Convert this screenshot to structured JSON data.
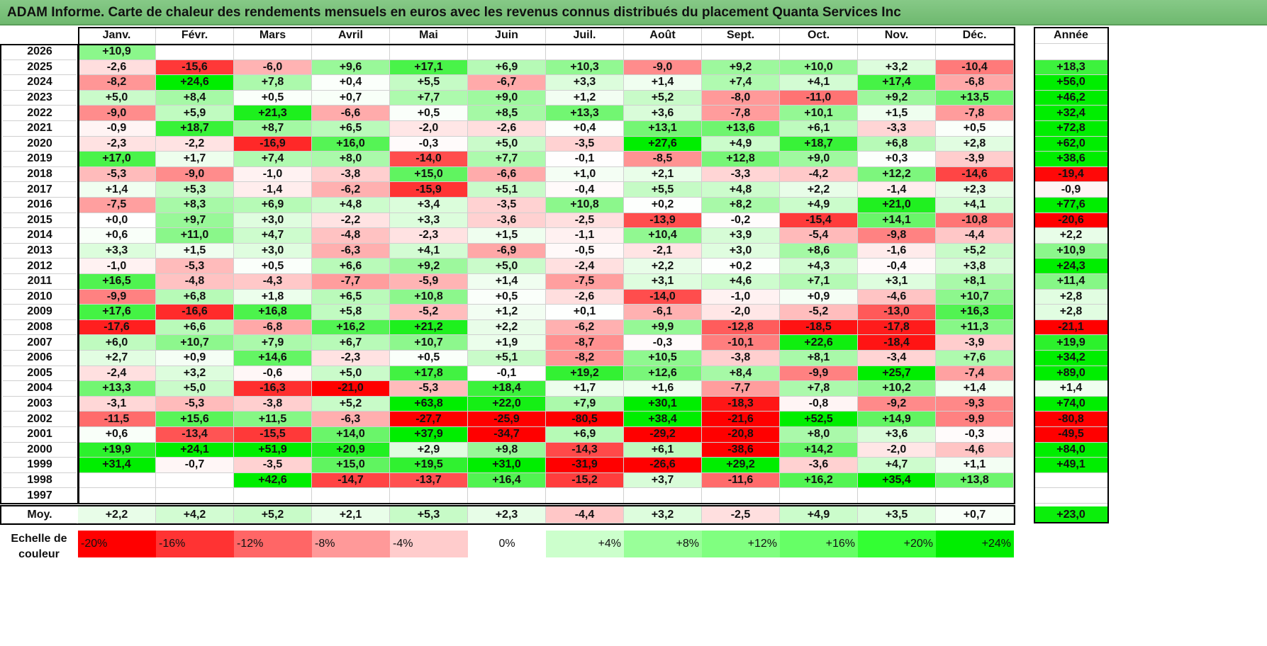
{
  "title": "ADAM Informe. Carte de chaleur des rendements mensuels en euros avec les revenus connus distribués du placement Quanta Services Inc",
  "chart_data": {
    "type": "heatmap",
    "months": [
      "Janv.",
      "Févr.",
      "Mars",
      "Avril",
      "Mai",
      "Juin",
      "Juil.",
      "Août",
      "Sept.",
      "Oct.",
      "Nov.",
      "Déc."
    ],
    "year_header": "Année",
    "rows": [
      {
        "year": "2026",
        "values": [
          "+10,9",
          null,
          null,
          null,
          null,
          null,
          null,
          null,
          null,
          null,
          null,
          null
        ],
        "annual": null
      },
      {
        "year": "2025",
        "values": [
          "-2,6",
          "-15,6",
          "-6,0",
          "+9,6",
          "+17,1",
          "+6,9",
          "+10,3",
          "-9,0",
          "+9,2",
          "+10,0",
          "+3,2",
          "-10,4"
        ],
        "annual": "+18,3"
      },
      {
        "year": "2024",
        "values": [
          "-8,2",
          "+24,6",
          "+7,8",
          "+0,4",
          "+5,5",
          "-6,7",
          "+3,3",
          "+1,4",
          "+7,4",
          "+4,1",
          "+17,4",
          "-6,8"
        ],
        "annual": "+56,0"
      },
      {
        "year": "2023",
        "values": [
          "+5,0",
          "+8,4",
          "+0,5",
          "+0,7",
          "+7,7",
          "+9,0",
          "+1,2",
          "+5,2",
          "-8,0",
          "-11,0",
          "+9,2",
          "+13,5"
        ],
        "annual": "+46,2"
      },
      {
        "year": "2022",
        "values": [
          "-9,0",
          "+5,9",
          "+21,3",
          "-6,6",
          "+0,5",
          "+8,5",
          "+13,3",
          "+3,6",
          "-7,8",
          "+10,1",
          "+1,5",
          "-7,8"
        ],
        "annual": "+32,4"
      },
      {
        "year": "2021",
        "values": [
          "-0,9",
          "+18,7",
          "+8,7",
          "+6,5",
          "-2,0",
          "-2,6",
          "+0,4",
          "+13,1",
          "+13,6",
          "+6,1",
          "-3,3",
          "+0,5"
        ],
        "annual": "+72,8"
      },
      {
        "year": "2020",
        "values": [
          "-2,3",
          "-2,2",
          "-16,9",
          "+16,0",
          "-0,3",
          "+5,0",
          "-3,5",
          "+27,6",
          "+4,9",
          "+18,7",
          "+6,8",
          "+2,8"
        ],
        "annual": "+62,0"
      },
      {
        "year": "2019",
        "values": [
          "+17,0",
          "+1,7",
          "+7,4",
          "+8,0",
          "-14,0",
          "+7,7",
          "-0,1",
          "-8,5",
          "+12,8",
          "+9,0",
          "+0,3",
          "-3,9"
        ],
        "annual": "+38,6"
      },
      {
        "year": "2018",
        "values": [
          "-5,3",
          "-9,0",
          "-1,0",
          "-3,8",
          "+15,0",
          "-6,6",
          "+1,0",
          "+2,1",
          "-3,3",
          "-4,2",
          "+12,2",
          "-14,6"
        ],
        "annual": "-19,4"
      },
      {
        "year": "2017",
        "values": [
          "+1,4",
          "+5,3",
          "-1,4",
          "-6,2",
          "-15,9",
          "+5,1",
          "-0,4",
          "+5,5",
          "+4,8",
          "+2,2",
          "-1,4",
          "+2,3"
        ],
        "annual": "-0,9"
      },
      {
        "year": "2016",
        "values": [
          "-7,5",
          "+8,3",
          "+6,9",
          "+4,8",
          "+3,4",
          "-3,5",
          "+10,8",
          "+0,2",
          "+8,2",
          "+4,9",
          "+21,0",
          "+4,1"
        ],
        "annual": "+77,6"
      },
      {
        "year": "2015",
        "values": [
          "+0,0",
          "+9,7",
          "+3,0",
          "-2,2",
          "+3,3",
          "-3,6",
          "-2,5",
          "-13,9",
          "-0,2",
          "-15,4",
          "+14,1",
          "-10,8"
        ],
        "annual": "-20,6"
      },
      {
        "year": "2014",
        "values": [
          "+0,6",
          "+11,0",
          "+4,7",
          "-4,8",
          "-2,3",
          "+1,5",
          "-1,1",
          "+10,4",
          "+3,9",
          "-5,4",
          "-9,8",
          "-4,4"
        ],
        "annual": "+2,2"
      },
      {
        "year": "2013",
        "values": [
          "+3,3",
          "+1,5",
          "+3,0",
          "-6,3",
          "+4,1",
          "-6,9",
          "-0,5",
          "-2,1",
          "+3,0",
          "+8,6",
          "-1,6",
          "+5,2"
        ],
        "annual": "+10,9"
      },
      {
        "year": "2012",
        "values": [
          "-1,0",
          "-5,3",
          "+0,5",
          "+6,6",
          "+9,2",
          "+5,0",
          "-2,4",
          "+2,2",
          "+0,2",
          "+4,3",
          "-0,4",
          "+3,8"
        ],
        "annual": "+24,3"
      },
      {
        "year": "2011",
        "values": [
          "+16,5",
          "-4,8",
          "-4,3",
          "-7,7",
          "-5,9",
          "+1,4",
          "-7,5",
          "+3,1",
          "+4,6",
          "+7,1",
          "+3,1",
          "+8,1"
        ],
        "annual": "+11,4"
      },
      {
        "year": "2010",
        "values": [
          "-9,9",
          "+6,8",
          "+1,8",
          "+6,5",
          "+10,8",
          "+0,5",
          "-2,6",
          "-14,0",
          "-1,0",
          "+0,9",
          "-4,6",
          "+10,7"
        ],
        "annual": "+2,8"
      },
      {
        "year": "2009",
        "values": [
          "+17,6",
          "-16,6",
          "+16,8",
          "+5,8",
          "-5,2",
          "+1,2",
          "+0,1",
          "-6,1",
          "-2,0",
          "-5,2",
          "-13,0",
          "+16,3"
        ],
        "annual": "+2,8"
      },
      {
        "year": "2008",
        "values": [
          "-17,6",
          "+6,6",
          "-6,8",
          "+16,2",
          "+21,2",
          "+2,2",
          "-6,2",
          "+9,9",
          "-12,8",
          "-18,5",
          "-17,8",
          "+11,3"
        ],
        "annual": "-21,1"
      },
      {
        "year": "2007",
        "values": [
          "+6,0",
          "+10,7",
          "+7,9",
          "+6,7",
          "+10,7",
          "+1,9",
          "-8,7",
          "-0,3",
          "-10,1",
          "+22,6",
          "-18,4",
          "-3,9"
        ],
        "annual": "+19,9"
      },
      {
        "year": "2006",
        "values": [
          "+2,7",
          "+0,9",
          "+14,6",
          "-2,3",
          "+0,5",
          "+5,1",
          "-8,2",
          "+10,5",
          "-3,8",
          "+8,1",
          "-3,4",
          "+7,6"
        ],
        "annual": "+34,2"
      },
      {
        "year": "2005",
        "values": [
          "-2,4",
          "+3,2",
          "-0,6",
          "+5,0",
          "+17,8",
          "-0,1",
          "+19,2",
          "+12,6",
          "+8,4",
          "-9,9",
          "+25,7",
          "-7,4"
        ],
        "annual": "+89,0"
      },
      {
        "year": "2004",
        "values": [
          "+13,3",
          "+5,0",
          "-16,3",
          "-21,0",
          "-5,3",
          "+18,4",
          "+1,7",
          "+1,6",
          "-7,7",
          "+7,8",
          "+10,2",
          "+1,4"
        ],
        "annual": "+1,4"
      },
      {
        "year": "2003",
        "values": [
          "-3,1",
          "-5,3",
          "-3,8",
          "+5,2",
          "+63,8",
          "+22,0",
          "+7,9",
          "+30,1",
          "-18,3",
          "-0,8",
          "-9,2",
          "-9,3"
        ],
        "annual": "+74,0"
      },
      {
        "year": "2002",
        "values": [
          "-11,5",
          "+15,6",
          "+11,5",
          "-6,3",
          "-27,7",
          "-25,9",
          "-80,5",
          "+38,4",
          "-21,6",
          "+52,5",
          "+14,9",
          "-9,9"
        ],
        "annual": "-80,8"
      },
      {
        "year": "2001",
        "values": [
          "+0,6",
          "-13,4",
          "-15,5",
          "+14,0",
          "+37,9",
          "-34,7",
          "+6,9",
          "-29,2",
          "-20,8",
          "+8,0",
          "+3,6",
          "-0,3"
        ],
        "annual": "-49,5"
      },
      {
        "year": "2000",
        "values": [
          "+19,9",
          "+24,1",
          "+51,9",
          "+20,9",
          "+2,9",
          "+9,8",
          "-14,3",
          "+6,1",
          "-38,6",
          "+14,2",
          "-2,0",
          "-4,6"
        ],
        "annual": "+84,0"
      },
      {
        "year": "1999",
        "values": [
          "+31,4",
          "-0,7",
          "-3,5",
          "+15,0",
          "+19,5",
          "+31,0",
          "-31,9",
          "-26,6",
          "+29,2",
          "-3,6",
          "+4,7",
          "+1,1"
        ],
        "annual": "+49,1"
      },
      {
        "year": "1998",
        "values": [
          null,
          null,
          "+42,6",
          "-14,7",
          "-13,7",
          "+16,4",
          "-15,2",
          "+3,7",
          "-11,6",
          "+16,2",
          "+35,4",
          "+13,8"
        ],
        "annual": null
      },
      {
        "year": "1997",
        "values": [
          null,
          null,
          null,
          null,
          null,
          null,
          null,
          null,
          null,
          null,
          null,
          null
        ],
        "annual": null
      }
    ],
    "average": {
      "label": "Moy.",
      "values": [
        "+2,2",
        "+4,2",
        "+5,2",
        "+2,1",
        "+5,3",
        "+2,3",
        "-4,4",
        "+3,2",
        "-2,5",
        "+4,9",
        "+3,5",
        "+0,7"
      ],
      "annual": "+23,0"
    },
    "color_scale": {
      "label_line1": "Echelle de",
      "label_line2": "couleur",
      "stops": [
        {
          "label": "-20%",
          "value": -20,
          "color": "#ff0000"
        },
        {
          "label": "-16%",
          "value": -16,
          "color": "#ff3333"
        },
        {
          "label": "-12%",
          "value": -12,
          "color": "#ff6666"
        },
        {
          "label": "-8%",
          "value": -8,
          "color": "#ff9999"
        },
        {
          "label": "-4%",
          "value": -4,
          "color": "#ffcccc"
        },
        {
          "label": "0%",
          "value": 0,
          "color": "#ffffff"
        },
        {
          "label": "+4%",
          "value": 4,
          "color": "#ccffcc"
        },
        {
          "label": "+8%",
          "value": 8,
          "color": "#99ff99"
        },
        {
          "label": "+12%",
          "value": 12,
          "color": "#80ff80"
        },
        {
          "label": "+16%",
          "value": 16,
          "color": "#66ff66"
        },
        {
          "label": "+20%",
          "value": 20,
          "color": "#33ff33"
        },
        {
          "label": "+24%",
          "value": 24,
          "color": "#00ee00"
        }
      ]
    }
  }
}
